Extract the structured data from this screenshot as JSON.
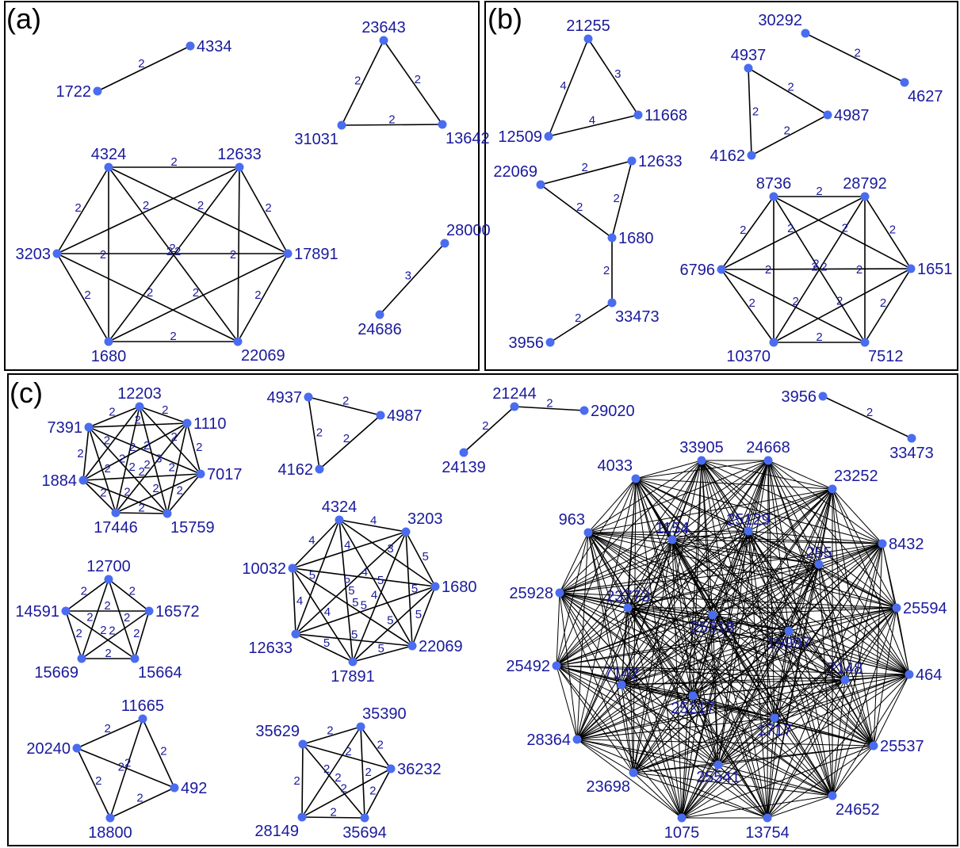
{
  "panels": [
    {
      "id": "a",
      "label": "(a)",
      "groups": [
        {
          "nodes": [
            {
              "id": "1722"
            },
            {
              "id": "4334"
            }
          ],
          "edges": [
            {
              "s": "1722",
              "t": "4334",
              "w": "2"
            }
          ]
        },
        {
          "nodes": [
            {
              "id": "23643"
            },
            {
              "id": "31031"
            },
            {
              "id": "13642"
            }
          ],
          "edges": [
            {
              "s": "23643",
              "t": "31031",
              "w": "2"
            },
            {
              "s": "23643",
              "t": "13642",
              "w": "2"
            },
            {
              "s": "31031",
              "t": "13642",
              "w": "2"
            }
          ]
        },
        {
          "nodes": [
            {
              "id": "4324"
            },
            {
              "id": "12633"
            },
            {
              "id": "17891"
            },
            {
              "id": "22069"
            },
            {
              "id": "1680"
            },
            {
              "id": "3203"
            }
          ],
          "complete": true,
          "default_weight": "2"
        },
        {
          "nodes": [
            {
              "id": "28000"
            },
            {
              "id": "24686"
            }
          ],
          "edges": [
            {
              "s": "28000",
              "t": "24686",
              "w": "3"
            }
          ]
        }
      ]
    },
    {
      "id": "b",
      "label": "(b)",
      "groups": [
        {
          "nodes": [
            {
              "id": "21255"
            },
            {
              "id": "12509"
            },
            {
              "id": "11668"
            }
          ],
          "edges": [
            {
              "s": "21255",
              "t": "12509",
              "w": "4"
            },
            {
              "s": "21255",
              "t": "11668",
              "w": "3"
            },
            {
              "s": "12509",
              "t": "11668",
              "w": "4"
            }
          ]
        },
        {
          "nodes": [
            {
              "id": "30292"
            },
            {
              "id": "4627"
            }
          ],
          "edges": [
            {
              "s": "30292",
              "t": "4627",
              "w": "2"
            }
          ]
        },
        {
          "nodes": [
            {
              "id": "4937"
            },
            {
              "id": "4987"
            },
            {
              "id": "4162"
            }
          ],
          "edges": [
            {
              "s": "4937",
              "t": "4987",
              "w": "2"
            },
            {
              "s": "4937",
              "t": "4162",
              "w": "2"
            },
            {
              "s": "4162",
              "t": "4987",
              "w": "2"
            }
          ]
        },
        {
          "nodes": [
            {
              "id": "22069"
            },
            {
              "id": "12633"
            },
            {
              "id": "1680"
            },
            {
              "id": "33473"
            },
            {
              "id": "3956"
            }
          ],
          "edges": [
            {
              "s": "22069",
              "t": "12633",
              "w": "2"
            },
            {
              "s": "22069",
              "t": "1680",
              "w": "2"
            },
            {
              "s": "12633",
              "t": "1680",
              "w": "2"
            },
            {
              "s": "1680",
              "t": "33473",
              "w": "2"
            },
            {
              "s": "33473",
              "t": "3956",
              "w": "2"
            }
          ]
        },
        {
          "nodes": [
            {
              "id": "8736"
            },
            {
              "id": "28792"
            },
            {
              "id": "1651"
            },
            {
              "id": "7512"
            },
            {
              "id": "10370"
            },
            {
              "id": "6796"
            }
          ],
          "complete": true,
          "default_weight": "2"
        }
      ]
    },
    {
      "id": "c",
      "label": "(c)",
      "groups": [
        {
          "nodes": [
            {
              "id": "12203"
            },
            {
              "id": "1110"
            },
            {
              "id": "7017"
            },
            {
              "id": "15759"
            },
            {
              "id": "17446"
            },
            {
              "id": "1884"
            },
            {
              "id": "7391"
            }
          ],
          "complete": true,
          "default_weight": "2",
          "overrides": [
            {
              "s": "12203",
              "t": "15759",
              "w": "3"
            }
          ]
        },
        {
          "nodes": [
            {
              "id": "12700"
            },
            {
              "id": "16572"
            },
            {
              "id": "15664"
            },
            {
              "id": "15669"
            },
            {
              "id": "14591"
            }
          ],
          "complete": true,
          "default_weight": "2"
        },
        {
          "nodes": [
            {
              "id": "11665"
            },
            {
              "id": "492"
            },
            {
              "id": "18800"
            },
            {
              "id": "20240"
            }
          ],
          "complete": true,
          "default_weight": "2"
        },
        {
          "nodes": [
            {
              "id": "4937"
            },
            {
              "id": "4987"
            },
            {
              "id": "4162"
            }
          ],
          "edges": [
            {
              "s": "4937",
              "t": "4987",
              "w": "2"
            },
            {
              "s": "4937",
              "t": "4162",
              "w": "2"
            },
            {
              "s": "4162",
              "t": "4987",
              "w": "2"
            }
          ]
        },
        {
          "nodes": [
            {
              "id": "4324"
            },
            {
              "id": "3203"
            },
            {
              "id": "1680"
            },
            {
              "id": "22069"
            },
            {
              "id": "17891"
            },
            {
              "id": "12633"
            },
            {
              "id": "10032"
            }
          ],
          "complete": true,
          "default_weight": "5",
          "overrides": [
            {
              "s": "4324",
              "t": "3203",
              "w": "4"
            },
            {
              "s": "4324",
              "t": "10032",
              "w": "4"
            },
            {
              "s": "10032",
              "t": "3203",
              "w": "4"
            },
            {
              "s": "10032",
              "t": "12633",
              "w": "4"
            },
            {
              "s": "10032",
              "t": "1680",
              "w": "4"
            },
            {
              "s": "4324",
              "t": "1680",
              "w": "3"
            },
            {
              "s": "10032",
              "t": "17891",
              "w": "4"
            },
            {
              "s": "3203",
              "t": "17891",
              "w": "4"
            }
          ]
        },
        {
          "nodes": [
            {
              "id": "35390"
            },
            {
              "id": "36232"
            },
            {
              "id": "35694"
            },
            {
              "id": "28149"
            },
            {
              "id": "35629"
            }
          ],
          "complete": true,
          "default_weight": "2"
        },
        {
          "nodes": [
            {
              "id": "21244"
            },
            {
              "id": "29020"
            },
            {
              "id": "24139"
            }
          ],
          "edges": [
            {
              "s": "21244",
              "t": "29020",
              "w": "2"
            },
            {
              "s": "21244",
              "t": "24139",
              "w": "2"
            }
          ]
        },
        {
          "nodes": [
            {
              "id": "3956"
            },
            {
              "id": "33473"
            }
          ],
          "edges": [
            {
              "s": "3956",
              "t": "33473",
              "w": "2"
            }
          ]
        },
        {
          "nodes": [
            {
              "id": "4033"
            },
            {
              "id": "33905"
            },
            {
              "id": "24668"
            },
            {
              "id": "23252"
            },
            {
              "id": "8432"
            },
            {
              "id": "25594"
            },
            {
              "id": "464"
            },
            {
              "id": "25537"
            },
            {
              "id": "24652"
            },
            {
              "id": "13754"
            },
            {
              "id": "1075"
            },
            {
              "id": "23698"
            },
            {
              "id": "28364"
            },
            {
              "id": "25492"
            },
            {
              "id": "25928"
            },
            {
              "id": "963"
            },
            {
              "id": "1154"
            },
            {
              "id": "25129"
            },
            {
              "id": "255"
            },
            {
              "id": "7148"
            },
            {
              "id": "1717"
            },
            {
              "id": "25541"
            },
            {
              "id": "7142"
            },
            {
              "id": "23773"
            },
            {
              "id": "25318"
            },
            {
              "id": "15997"
            },
            {
              "id": "25217"
            }
          ],
          "complete": true,
          "thin": true
        }
      ]
    }
  ]
}
